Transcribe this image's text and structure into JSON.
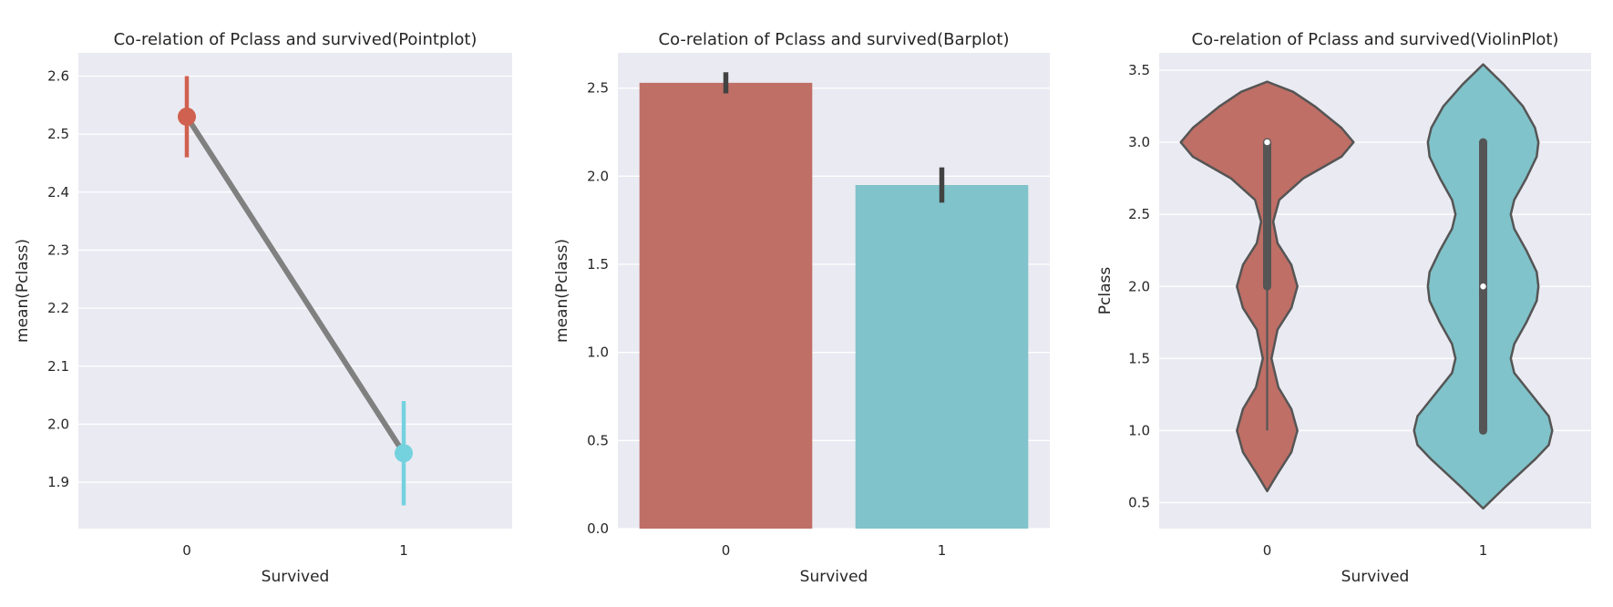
{
  "colors": {
    "series_0": "#bf6f66",
    "series_1": "#80c3ca",
    "point_0": "#d0604f",
    "point_1": "#74d2de",
    "connect_line": "#808080",
    "errorbar": "#424242",
    "violin_edge": "#555555",
    "plot_background": "#eaeaf2",
    "grid": "#ffffff"
  },
  "chart_data": [
    {
      "type": "point",
      "title": "Co-relation of Pclass and survived(Pointplot)",
      "xlabel": "Survived",
      "ylabel": "mean(Pclass)",
      "categories": [
        "0",
        "1"
      ],
      "values": [
        2.53,
        1.95
      ],
      "ci": [
        [
          2.46,
          2.6
        ],
        [
          1.86,
          2.04
        ]
      ],
      "ylim": [
        1.82,
        2.64
      ],
      "yticks": [
        1.9,
        2.0,
        2.1,
        2.2,
        2.3,
        2.4,
        2.5,
        2.6
      ],
      "grid": true,
      "legend": "none"
    },
    {
      "type": "bar",
      "title": "Co-relation of Pclass and survived(Barplot)",
      "xlabel": "Survived",
      "ylabel": "mean(Pclass)",
      "categories": [
        "0",
        "1"
      ],
      "values": [
        2.53,
        1.95
      ],
      "ci": [
        [
          2.47,
          2.59
        ],
        [
          1.85,
          2.05
        ]
      ],
      "ylim": [
        0,
        2.7
      ],
      "yticks": [
        0.0,
        0.5,
        1.0,
        1.5,
        2.0,
        2.5
      ],
      "grid": true,
      "legend": "none"
    },
    {
      "type": "violin",
      "title": "Co-relation of Pclass and survived(ViolinPlot)",
      "xlabel": "Survived",
      "ylabel": "Pclass",
      "categories": [
        "0",
        "1"
      ],
      "ylim": [
        0.32,
        3.62
      ],
      "yticks": [
        0.5,
        1.0,
        1.5,
        2.0,
        2.5,
        3.0,
        3.5
      ],
      "grid": true,
      "legend": "none",
      "violins": [
        {
          "category": "0",
          "median": 3.0,
          "q1": 2.0,
          "q3": 3.0,
          "whisker_low": 1.0,
          "whisker_high": 3.0,
          "density": [
            [
              0.58,
              0.0
            ],
            [
              0.7,
              0.12
            ],
            [
              0.85,
              0.28
            ],
            [
              1.0,
              0.35
            ],
            [
              1.15,
              0.28
            ],
            [
              1.3,
              0.13
            ],
            [
              1.5,
              0.05
            ],
            [
              1.7,
              0.12
            ],
            [
              1.85,
              0.28
            ],
            [
              2.0,
              0.35
            ],
            [
              2.15,
              0.28
            ],
            [
              2.3,
              0.12
            ],
            [
              2.45,
              0.07
            ],
            [
              2.6,
              0.14
            ],
            [
              2.75,
              0.42
            ],
            [
              2.9,
              0.86
            ],
            [
              3.0,
              1.0
            ],
            [
              3.1,
              0.86
            ],
            [
              3.25,
              0.55
            ],
            [
              3.35,
              0.3
            ],
            [
              3.42,
              0.0
            ]
          ]
        },
        {
          "category": "1",
          "median": 2.0,
          "q1": 1.0,
          "q3": 3.0,
          "whisker_low": 1.0,
          "whisker_high": 3.0,
          "density": [
            [
              0.46,
              0.0
            ],
            [
              0.6,
              0.24
            ],
            [
              0.8,
              0.6
            ],
            [
              0.9,
              0.76
            ],
            [
              1.0,
              0.8
            ],
            [
              1.1,
              0.76
            ],
            [
              1.25,
              0.56
            ],
            [
              1.4,
              0.36
            ],
            [
              1.5,
              0.32
            ],
            [
              1.6,
              0.36
            ],
            [
              1.75,
              0.5
            ],
            [
              1.9,
              0.62
            ],
            [
              2.0,
              0.64
            ],
            [
              2.1,
              0.62
            ],
            [
              2.25,
              0.5
            ],
            [
              2.4,
              0.36
            ],
            [
              2.5,
              0.32
            ],
            [
              2.6,
              0.36
            ],
            [
              2.75,
              0.5
            ],
            [
              2.9,
              0.62
            ],
            [
              3.0,
              0.64
            ],
            [
              3.1,
              0.6
            ],
            [
              3.25,
              0.46
            ],
            [
              3.4,
              0.24
            ],
            [
              3.54,
              0.0
            ]
          ]
        }
      ]
    }
  ]
}
